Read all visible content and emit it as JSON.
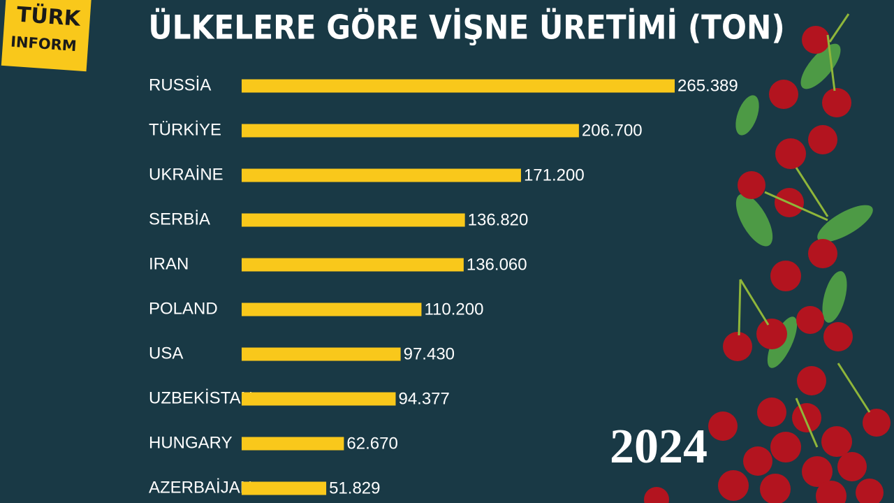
{
  "brand": {
    "line1": "TÜRK",
    "line2": "INFORM"
  },
  "year": "2024",
  "chart_data": {
    "type": "bar",
    "orientation": "horizontal",
    "title": "ÜLKELERE GÖRE VİŞNE ÜRETİMİ (TON)",
    "categories": [
      "RUSSİA",
      "TÜRKİYE",
      "UKRAİNE",
      "SERBİA",
      "IRAN",
      "POLAND",
      "USA",
      "UZBEKİSTAN",
      "HUNGARY",
      "AZERBAİJAN"
    ],
    "values": [
      265389,
      206700,
      171200,
      136820,
      136060,
      110200,
      97430,
      94377,
      62670,
      51829
    ],
    "value_labels": [
      "265.389",
      "206.700",
      "171.200",
      "136.820",
      "136.060",
      "110.200",
      "97.430",
      "94.377",
      "62.670",
      "51.829"
    ],
    "color": "#f9c81b"
  }
}
